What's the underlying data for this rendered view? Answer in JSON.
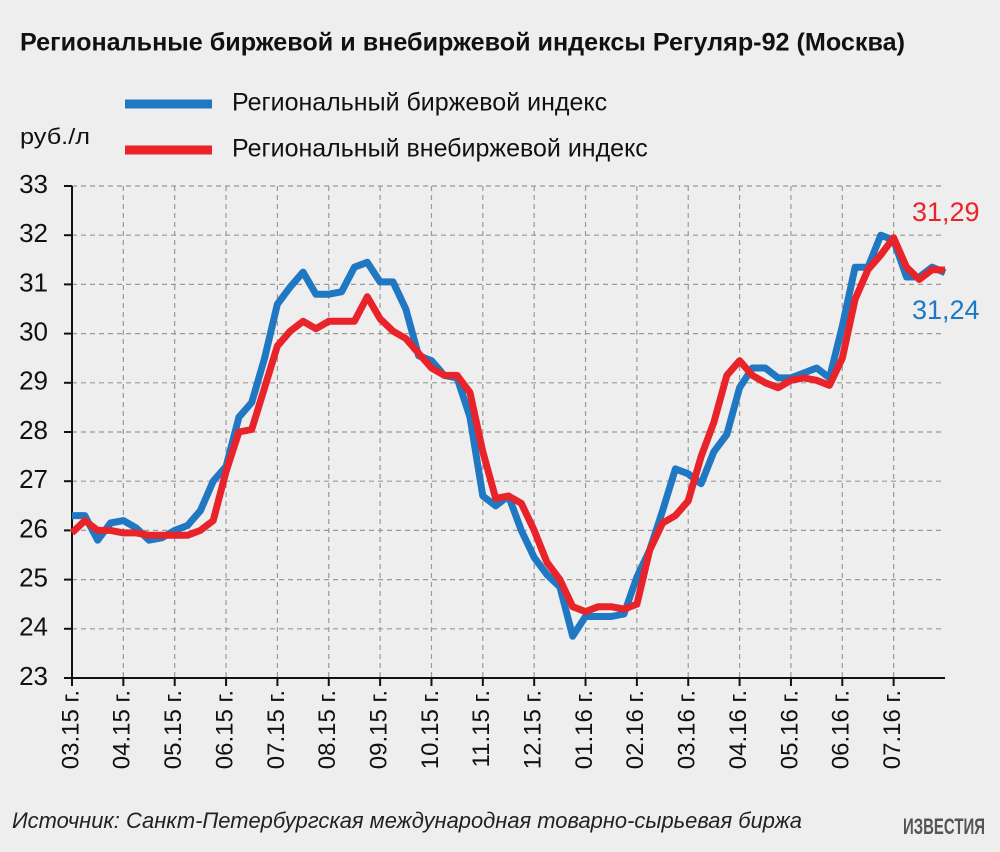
{
  "chart_data": {
    "type": "line",
    "title": "Региональные биржевой и внебиржевой индексы Регуляр-92 (Москва)",
    "y_label": "руб./л",
    "categories": [
      "03.15 г.",
      null,
      null,
      null,
      "04.15 г.",
      null,
      null,
      null,
      "05.15 г.",
      null,
      null,
      null,
      "06.15 г.",
      null,
      null,
      null,
      "07.15 г.",
      null,
      null,
      null,
      "08.15 г.",
      null,
      null,
      null,
      "09.15 г.",
      null,
      null,
      null,
      "10.15 г.",
      null,
      null,
      null,
      "11.15 г.",
      null,
      null,
      null,
      "12.15 г.",
      null,
      null,
      null,
      "01.16 г.",
      null,
      null,
      null,
      "02.16 г.",
      null,
      null,
      null,
      "03.16 г.",
      null,
      null,
      null,
      "04.16 г.",
      null,
      null,
      null,
      "05.16 г.",
      null,
      null,
      null,
      "06.16 г.",
      null,
      null,
      null,
      "07.16 г.",
      null,
      null,
      null,
      null
    ],
    "series": [
      {
        "name": "Региональный биржевой индекс",
        "color": "#1f78c1",
        "values": [
          26.3,
          26.3,
          25.8,
          26.15,
          26.2,
          26.05,
          25.8,
          25.85,
          26.0,
          26.1,
          26.4,
          27.0,
          27.3,
          28.3,
          28.6,
          29.5,
          30.6,
          30.95,
          31.25,
          30.8,
          30.8,
          30.85,
          31.35,
          31.45,
          31.05,
          31.05,
          30.5,
          29.55,
          29.45,
          29.15,
          29.1,
          28.3,
          26.7,
          26.5,
          26.7,
          26.0,
          25.45,
          25.1,
          24.85,
          23.85,
          24.25,
          24.25,
          24.25,
          24.3,
          25.05,
          25.6,
          26.4,
          27.25,
          27.15,
          26.95,
          27.6,
          27.95,
          28.9,
          29.3,
          29.3,
          29.1,
          29.1,
          29.2,
          29.3,
          29.1,
          30.15,
          31.35,
          31.35,
          32.0,
          31.9,
          31.15,
          31.15,
          31.35,
          31.24
        ]
      },
      {
        "name": "Региональный внебиржевой индекс",
        "color": "#e8232a",
        "values": [
          25.95,
          26.2,
          26.0,
          26.0,
          25.95,
          25.95,
          25.9,
          25.9,
          25.9,
          25.9,
          26.0,
          26.2,
          27.2,
          28.0,
          28.05,
          28.9,
          29.75,
          30.05,
          30.25,
          30.1,
          30.25,
          30.25,
          30.25,
          30.75,
          30.3,
          30.05,
          29.9,
          29.6,
          29.3,
          29.15,
          29.15,
          28.8,
          27.6,
          26.65,
          26.7,
          26.55,
          26.0,
          25.35,
          25.0,
          24.45,
          24.35,
          24.45,
          24.45,
          24.4,
          24.5,
          25.6,
          26.15,
          26.3,
          26.6,
          27.5,
          28.2,
          29.15,
          29.45,
          29.15,
          29.0,
          28.9,
          29.05,
          29.1,
          29.05,
          28.95,
          29.5,
          30.7,
          31.3,
          31.6,
          31.95,
          31.35,
          31.1,
          31.3,
          31.29
        ]
      }
    ],
    "annotations": [
      {
        "text": "31,29",
        "color": "#e8232a"
      },
      {
        "text": "31,24",
        "color": "#1f78c1"
      }
    ],
    "ylim": [
      23,
      33
    ],
    "yticks": [
      23,
      24,
      25,
      26,
      27,
      28,
      29,
      30,
      31,
      32,
      33
    ],
    "grid": true,
    "source": "Источник: Санкт-Петербургская международная товарно-сырьевая биржа",
    "logo": "ИЗВЕСТИЯ"
  }
}
